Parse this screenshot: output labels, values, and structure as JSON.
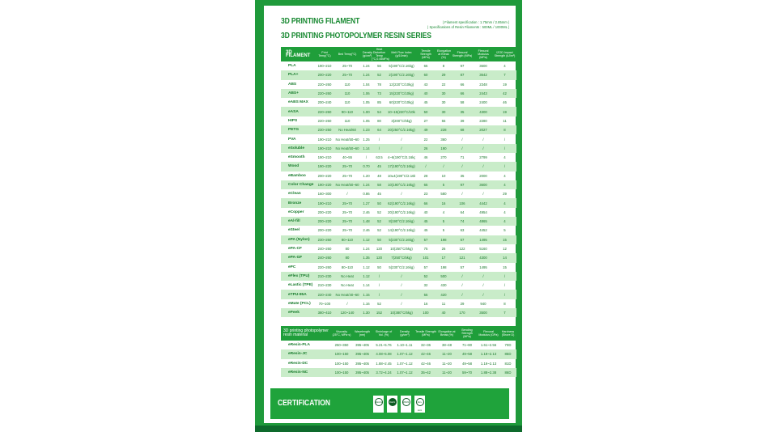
{
  "title_line1": "3D PRINTING FILAMENT",
  "title_line2": "3D PRINTING PHOTOPOLYMER RESIN SERIES",
  "spec_line1": "| Filament specification : 1.75mm / 2.85mm |",
  "spec_line2": "| Specifications of Resin Filaments : 500ML / 1000ML |",
  "colors": {
    "brand_green": "#1f9a3b",
    "row_alt": "#c9ecc9",
    "text_green": "#1a7a2c"
  },
  "filament": {
    "headers": [
      "3D FILAMENT",
      "Print Temp(°C)",
      "Bed Temp(°C)",
      "Density (g/cm³)",
      "Heat Distortion Temp (°C,0.45MPa)",
      "Melt Flow Index (g/10min)",
      "Tensile Strength (MPa)",
      "Elongation at Break (%)",
      "Flexural Strength (MPa)",
      "Flexural Modulus (MPa)",
      "IZOD Impact Strength (kJ/m²)"
    ],
    "rows": [
      [
        "PLA",
        "190~210",
        "25~70",
        "1.24",
        "56",
        "5(190°C/2.16kg)",
        "65",
        "8",
        "97",
        "3600",
        "4"
      ],
      [
        "PLA+",
        "200~220",
        "25~70",
        "1.24",
        "52",
        "2(190°C/2.16kg)",
        "60",
        "29",
        "87",
        "3642",
        "7"
      ],
      [
        "ABS",
        "220~260",
        "110",
        "1.04",
        "78",
        "12(220°C/10kg)",
        "43",
        "22",
        "66",
        "2348",
        "19"
      ],
      [
        "ABS+",
        "220~260",
        "110",
        "1.06",
        "73",
        "15(220°C/10kg)",
        "40",
        "30",
        "66",
        "2443",
        "42"
      ],
      [
        "eABS MAX",
        "200~240",
        "110",
        "1.05",
        "85",
        "60(220°C/10kg)",
        "45",
        "30",
        "58",
        "2400",
        "46"
      ],
      [
        "eASA",
        "220~260",
        "90~110",
        "1.00",
        "54",
        "10~15(220°C/10kg)",
        "50",
        "30",
        "35",
        "4300",
        "19"
      ],
      [
        "HIPS",
        "220~260",
        "110",
        "1.05",
        "80",
        "3(200°C/5kg)",
        "27",
        "55",
        "39",
        "2280",
        "11"
      ],
      [
        "PETG",
        "230~250",
        "No Heat/60",
        "1.23",
        "64",
        "20(250°C/2.16kg)",
        "49",
        "228",
        "68",
        "2027",
        "8"
      ],
      [
        "PVA",
        "190~210",
        "No Heat/50~60",
        "1.25",
        "/",
        "/",
        "22",
        "360",
        "/",
        "/",
        "/"
      ],
      [
        "eSoluble",
        "190~210",
        "No Heat/50~60",
        "1.14",
        "/",
        "/",
        "26",
        "190",
        "/",
        "/",
        "/"
      ],
      [
        "eSmooth",
        "190~210",
        "40~55",
        "/",
        "63.5",
        "4~6(190°C/2.16kg)",
        "46",
        "270",
        "71",
        "2799",
        "4"
      ],
      [
        "Wood",
        "190~220",
        "25~70",
        "0.70",
        "45",
        "17(190°C/2.16kg)",
        "/",
        "/",
        "/",
        "/",
        "/"
      ],
      [
        "eBamboo",
        "200~220",
        "25~70",
        "1.20",
        "48",
        "10±4(190°C/2.16kg)",
        "28",
        "10",
        "35",
        "2000",
        "4"
      ],
      [
        "Color Change",
        "190~220",
        "No Heat/50~60",
        "1.24",
        "58",
        "10(190°C/2.16kg)",
        "65",
        "5",
        "97",
        "3600",
        "4"
      ],
      [
        "eClean",
        "160~300",
        "/",
        "0.86",
        "45",
        "/",
        "23",
        "580",
        "/",
        "/",
        "29"
      ],
      [
        "Bronze",
        "190~210",
        "25~70",
        "1.27",
        "50",
        "62(190°C/2.16kg)",
        "66",
        "16",
        "106",
        "4442",
        "4"
      ],
      [
        "eCopper",
        "200~220",
        "25~70",
        "2.46",
        "52",
        "20(190°C/2.16kg)",
        "40",
        "4",
        "64",
        "4954",
        "4"
      ],
      [
        "eAl-fill",
        "200~220",
        "25~70",
        "1.48",
        "52",
        "8(190°C/2.16kg)",
        "45",
        "5",
        "74",
        "4865",
        "4"
      ],
      [
        "eSteel",
        "200~220",
        "25~70",
        "2.46",
        "52",
        "14(190°C/2.16kg)",
        "45",
        "5",
        "63",
        "4452",
        "5"
      ],
      [
        "ePA (Nylon)",
        "230~260",
        "80~110",
        "1.12",
        "50",
        "5(230°C/2.16kg)",
        "57",
        "198",
        "57",
        "1495",
        "15"
      ],
      [
        "ePA-CF",
        "240~260",
        "80",
        "1.24",
        "120",
        "10(250°C/5kg)",
        "75",
        "26",
        "122",
        "5160",
        "12"
      ],
      [
        "ePA-GF",
        "240~260",
        "80",
        "1.35",
        "120",
        "7(250°C/5kg)",
        "101",
        "17",
        "121",
        "4300",
        "14"
      ],
      [
        "ePC",
        "220~260",
        "80~110",
        "1.12",
        "50",
        "5(230°C/2.16kg)",
        "57",
        "198",
        "57",
        "1495",
        "15"
      ],
      [
        "eFlex (TPU)",
        "210~230",
        "No Heat",
        "1.12",
        "/",
        "/",
        "52",
        "500",
        "/",
        "/",
        "/"
      ],
      [
        "eLastic (TPE)",
        "210~230",
        "No Heat",
        "1.14",
        "/",
        "/",
        "32",
        "430",
        "/",
        "/",
        "/"
      ],
      [
        "eTPU-95A",
        "220~240",
        "No Heat/40~60",
        "1.15",
        "/",
        "/",
        "55",
        "420",
        "/",
        "/",
        "/"
      ],
      [
        "eMate (PCL)",
        "70~100",
        "/",
        "1.16",
        "52",
        "/",
        "16",
        "11",
        "29",
        "940",
        "8"
      ],
      [
        "ePeek",
        "380~410",
        "120~140",
        "1.30",
        "152",
        "10(380°C/5kg)",
        "100",
        "40",
        "170",
        "3500",
        "7"
      ]
    ]
  },
  "resin": {
    "headers": [
      "3D printing photopolymer resin material",
      "Viscosity (25°C, MPa·s)",
      "Wavelength (nm)",
      "Shrinkage of Vol. (%)",
      "Density (g/cm³)",
      "Tensile Strength (MPa)",
      "Elongation at Break (%)",
      "Bending Strength (MPa)",
      "Flexural Modulus (GPa)",
      "Hardness (Shore D)"
    ],
    "rows": [
      [
        "eResin-PLA",
        "250~350",
        "395~405",
        "5.21~5.76",
        "1.10~1.11",
        "32~36",
        "38~48",
        "71~80",
        "1.61~2.56",
        "70D"
      ],
      [
        "eResin-JC",
        "100~150",
        "395~405",
        "4.08~5.08",
        "1.07~1.12",
        "42~46",
        "11~20",
        "49~58",
        "1.19~2.13",
        "85D"
      ],
      [
        "eResin-DC",
        "100~150",
        "395~405",
        "1.88~2.45",
        "1.07~1.12",
        "42~46",
        "11~20",
        "49~58",
        "1.19~2.13",
        "81D"
      ],
      [
        "eResin-NC",
        "100~150",
        "395~405",
        "3.72~4.24",
        "1.07~1.12",
        "35~42",
        "11~20",
        "59~70",
        "1.88~2.38",
        "86D"
      ]
    ]
  },
  "certification": {
    "label": "CERTIFICATION",
    "badges": [
      "REACH",
      "RoHS",
      "MSDS",
      "Non-toxic"
    ]
  }
}
